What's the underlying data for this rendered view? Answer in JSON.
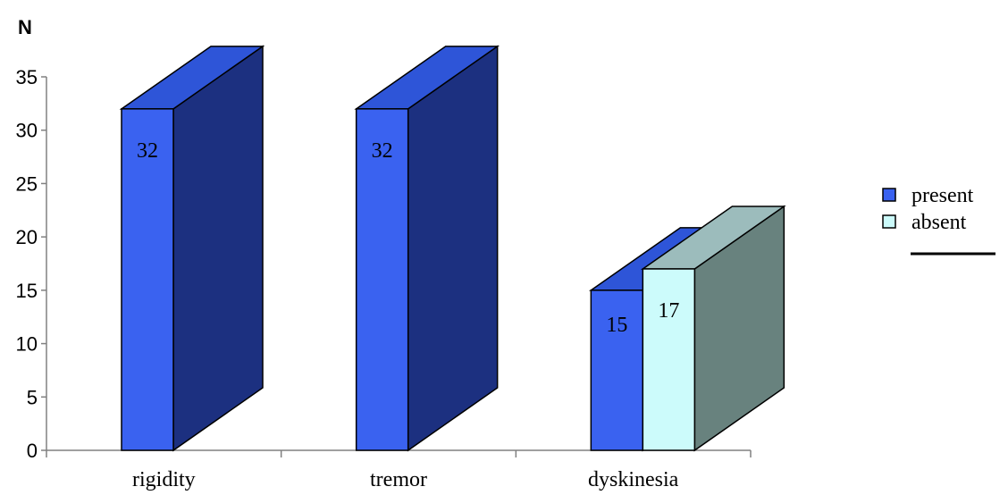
{
  "chart_data": {
    "type": "bar",
    "ylabel": "N",
    "xlabel": "",
    "ylim": [
      0,
      35
    ],
    "yticks": [
      0,
      5,
      10,
      15,
      20,
      25,
      30,
      35
    ],
    "categories": [
      "rigidity",
      "tremor",
      "dyskinesia"
    ],
    "series": [
      {
        "name": "present",
        "values": [
          32,
          32,
          15
        ]
      },
      {
        "name": "absent",
        "values": [
          null,
          null,
          17
        ]
      }
    ],
    "legend_position": "right",
    "grid": false,
    "style": "3d"
  },
  "colors": {
    "present_front": "#3a62f0",
    "present_top": "#2e55d8",
    "present_side": "#1c3080",
    "absent_front": "#ccfbfb",
    "absent_top": "#9cbcbc",
    "absent_side": "#68827e"
  }
}
